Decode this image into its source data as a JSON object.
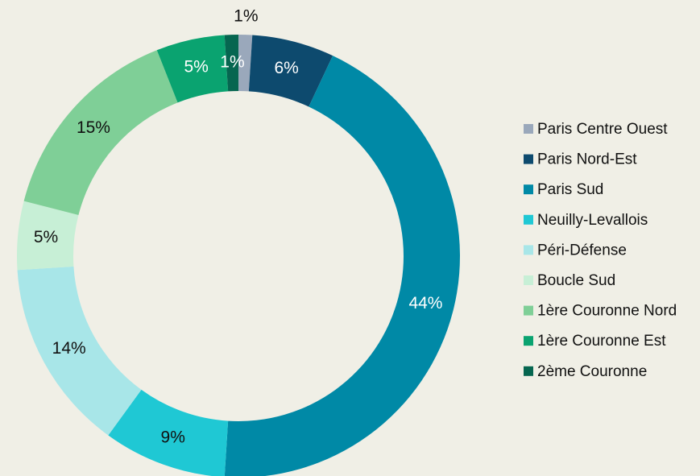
{
  "chart_data": {
    "type": "donut",
    "categories": [
      "Paris Centre Ouest",
      "Paris Nord-Est",
      "Paris Sud",
      "Neuilly-Levallois",
      "Péri-Défense",
      "Boucle Sud",
      "1ère Couronne Nord",
      "1ère Couronne Est",
      "2ème Couronne"
    ],
    "values": [
      1,
      6,
      44,
      9,
      14,
      5,
      15,
      5,
      1
    ],
    "value_labels": [
      "1%",
      "6%",
      "44%",
      "9%",
      "14%",
      "5%",
      "15%",
      "5%",
      "1%"
    ],
    "colors": [
      "#9aa8bb",
      "#0d4a6e",
      "#0089a6",
      "#1fc8d4",
      "#a8e6e8",
      "#c7efd6",
      "#7fcf97",
      "#0aa370",
      "#066650"
    ],
    "legend": "right",
    "background": "#f0efe6"
  }
}
